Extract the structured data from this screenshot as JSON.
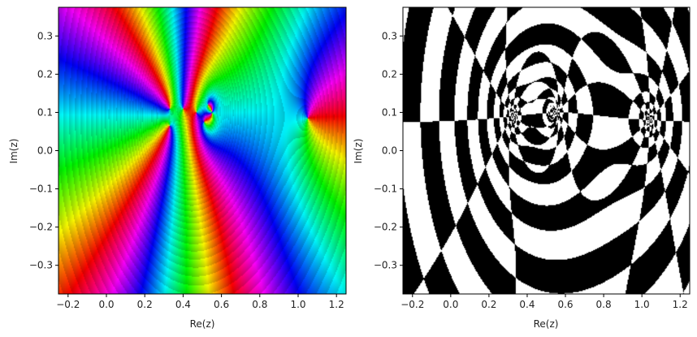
{
  "chart_data": [
    {
      "type": "heatmap",
      "panel": "phase-plot",
      "xlabel": "Re(z)",
      "ylabel": "Im(z)",
      "xlim": [
        -0.25,
        1.25
      ],
      "ylim": [
        -0.375,
        0.375
      ],
      "xticks": [
        -0.2,
        0.0,
        0.2,
        0.4,
        0.6,
        0.8,
        1.0,
        1.2
      ],
      "yticks": [
        -0.3,
        -0.2,
        -0.1,
        0.0,
        0.1,
        0.2,
        0.3
      ],
      "xtick_labels": [
        "−0.2",
        "0.0",
        "0.2",
        "0.4",
        "0.6",
        "0.8",
        "1.0",
        "1.2"
      ],
      "ytick_labels": [
        "−0.3",
        "−0.2",
        "−0.1",
        "0.0",
        "0.1",
        "0.2",
        "0.3"
      ],
      "colormap": "hue (argument of z)",
      "singular_points": [
        {
          "re": 0.33,
          "im": 0.11
        },
        {
          "re": 0.33,
          "im": 0.065
        },
        {
          "re": 0.4,
          "im": 0.11
        },
        {
          "re": 0.47,
          "im": 0.1
        },
        {
          "re": 0.51,
          "im": 0.075
        },
        {
          "re": 0.53,
          "im": 0.12
        },
        {
          "re": 1.05,
          "im": 0.085
        }
      ],
      "grid": false
    },
    {
      "type": "heatmap",
      "panel": "checkerboard-plot",
      "xlabel": "Re(z)",
      "ylabel": "Im(z)",
      "xlim": [
        -0.25,
        1.25
      ],
      "ylim": [
        -0.375,
        0.375
      ],
      "xticks": [
        -0.2,
        0.0,
        0.2,
        0.4,
        0.6,
        0.8,
        1.0,
        1.2
      ],
      "yticks": [
        -0.3,
        -0.2,
        -0.1,
        0.0,
        0.1,
        0.2,
        0.3
      ],
      "xtick_labels": [
        "−0.2",
        "0.0",
        "0.2",
        "0.4",
        "0.6",
        "0.8",
        "1.0",
        "1.2"
      ],
      "ytick_labels": [
        "−0.3",
        "−0.2",
        "−0.1",
        "0.0",
        "0.1",
        "0.2",
        "0.3"
      ],
      "colormap": "black/white checkerboard",
      "singular_points": [
        {
          "re": 0.33,
          "im": 0.09
        },
        {
          "re": 0.53,
          "im": 0.1
        },
        {
          "re": 1.04,
          "im": 0.08
        }
      ],
      "grid": false
    }
  ]
}
